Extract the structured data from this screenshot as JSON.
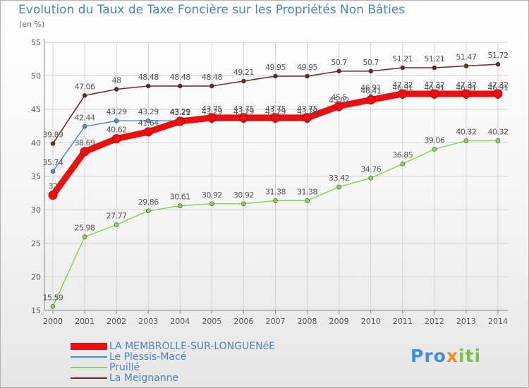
{
  "chart_data": {
    "type": "line",
    "title": "Evolution du Taux de Taxe Foncière sur les Propriétés Non Bâties",
    "ylabel": "(en %)",
    "xlabel": "",
    "x": [
      "2000",
      "2001",
      "2002",
      "2003",
      "2004",
      "2005",
      "2006",
      "2007",
      "2008",
      "2009",
      "2010",
      "2011",
      "2012",
      "2013",
      "2014"
    ],
    "ylim": [
      15,
      55
    ],
    "yticks": [
      "15",
      "20",
      "25",
      "30",
      "35",
      "40",
      "45",
      "50",
      "55"
    ],
    "series": [
      {
        "name": "La Meignanne",
        "color": "#6b2626",
        "values": [
          39.89,
          47.06,
          48,
          48.48,
          48.48,
          48.48,
          49.21,
          49.95,
          49.95,
          50.7,
          50.7,
          51.21,
          51.21,
          51.47,
          51.72
        ],
        "labels": [
          "39.89",
          "47.06",
          "48",
          "48.48",
          "48.48",
          "48.48",
          "49.21",
          "49.95",
          "49.95",
          "50.7",
          "50.7",
          "51.21",
          "51.21",
          "51.47",
          "51.72"
        ]
      },
      {
        "name": "Le Plessis-Macé",
        "color": "#4f8fc4",
        "values": [
          35.74,
          42.44,
          43.29,
          43.29,
          43.29,
          43.29,
          43.29,
          43.29,
          43.29,
          45.02,
          46.91,
          46.91,
          46.91,
          46.91,
          46.91
        ],
        "labels": [
          "35.74",
          "42.44",
          "43.29",
          "43.29",
          "43.29",
          "43.29",
          "43.29",
          "43.29",
          "43.29",
          "45.02",
          "46.91",
          "46.91",
          "46.91",
          "46.91",
          "46.91"
        ]
      },
      {
        "name": "Pruillé",
        "color": "#8fd15a",
        "values": [
          15.59,
          25.98,
          27.77,
          29.86,
          30.61,
          30.92,
          30.92,
          31.38,
          31.38,
          33.42,
          34.76,
          36.85,
          39.06,
          40.32,
          40.32
        ],
        "labels": [
          "15.59",
          "25.98",
          "27.77",
          "29.86",
          "30.61",
          "30.92",
          "30.92",
          "31.38",
          "31.38",
          "33.42",
          "34.76",
          "36.85",
          "39.06",
          "40.32",
          "40.32"
        ]
      },
      {
        "name": "LA MEMBROLLE-SUR-LONGUENéE",
        "color": "#e81010",
        "values": [
          32.2,
          38.69,
          40.62,
          41.64,
          43.21,
          43.75,
          43.75,
          43.75,
          43.75,
          45.5,
          46.41,
          47.32,
          47.32,
          47.32,
          47.32
        ],
        "labels": [
          "32",
          "38.69",
          "40.62",
          "41.64",
          "43.21",
          "43.75",
          "43.75",
          "43.75",
          "43.75",
          "45.5",
          "46.41",
          "47.32",
          "47.32",
          "47.32",
          "47.32"
        ]
      }
    ],
    "legend": [
      {
        "name": "LA MEMBROLLE-SUR-LONGUENéE",
        "color": "#e81010",
        "thick": true
      },
      {
        "name": "Le Plessis-Macé",
        "color": "#4f8fc4",
        "thick": false
      },
      {
        "name": "Pruillé",
        "color": "#8fd15a",
        "thick": false
      },
      {
        "name": "La Meignanne",
        "color": "#6b2626",
        "thick": false
      }
    ],
    "legend_position": "bottom-left",
    "grid": true
  },
  "logo": {
    "p1": "Pro",
    "p2": "x",
    "p3": "iti"
  }
}
